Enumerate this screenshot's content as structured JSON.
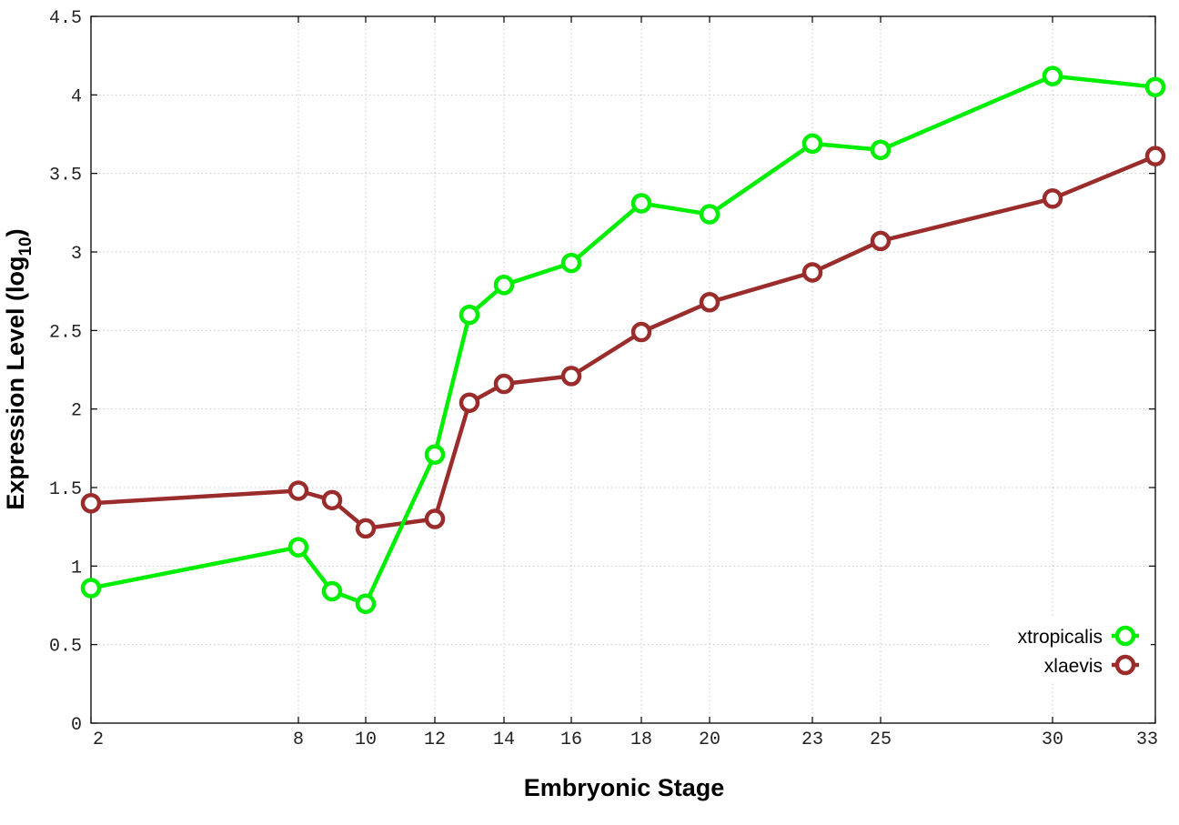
{
  "chart_data": {
    "type": "line",
    "xlabel": "Embryonic Stage",
    "ylabel": "Expression Level (log",
    "ylabel_subscript": "10",
    "ylabel_suffix": ")",
    "x_ticks": [
      "2",
      "8",
      "10",
      "12",
      "14",
      "16",
      "18",
      "20",
      "23",
      "25",
      "30",
      "33"
    ],
    "y_ticks": [
      "0",
      "0.5",
      "1",
      "1.5",
      "2",
      "2.5",
      "3",
      "3.5",
      "4",
      "4.5"
    ],
    "xlim": [
      2,
      33
    ],
    "ylim": [
      0,
      4.5
    ],
    "x_scale": "stage",
    "grid": true,
    "legend_position": "bottom-right",
    "x": [
      2,
      8,
      9,
      10,
      12,
      13,
      14,
      16,
      18,
      20,
      23,
      25,
      30,
      33
    ],
    "series": [
      {
        "name": "xtropicalis",
        "color": "#00ee00",
        "values": [
          0.86,
          1.12,
          0.84,
          0.76,
          1.71,
          2.6,
          2.79,
          2.93,
          3.31,
          3.24,
          3.69,
          3.65,
          4.12,
          4.05
        ]
      },
      {
        "name": "xlaevis",
        "color": "#9b2c2c",
        "values": [
          1.4,
          1.48,
          1.42,
          1.24,
          1.3,
          2.04,
          2.16,
          2.21,
          2.49,
          2.68,
          2.87,
          3.07,
          3.34,
          3.61
        ]
      }
    ]
  }
}
